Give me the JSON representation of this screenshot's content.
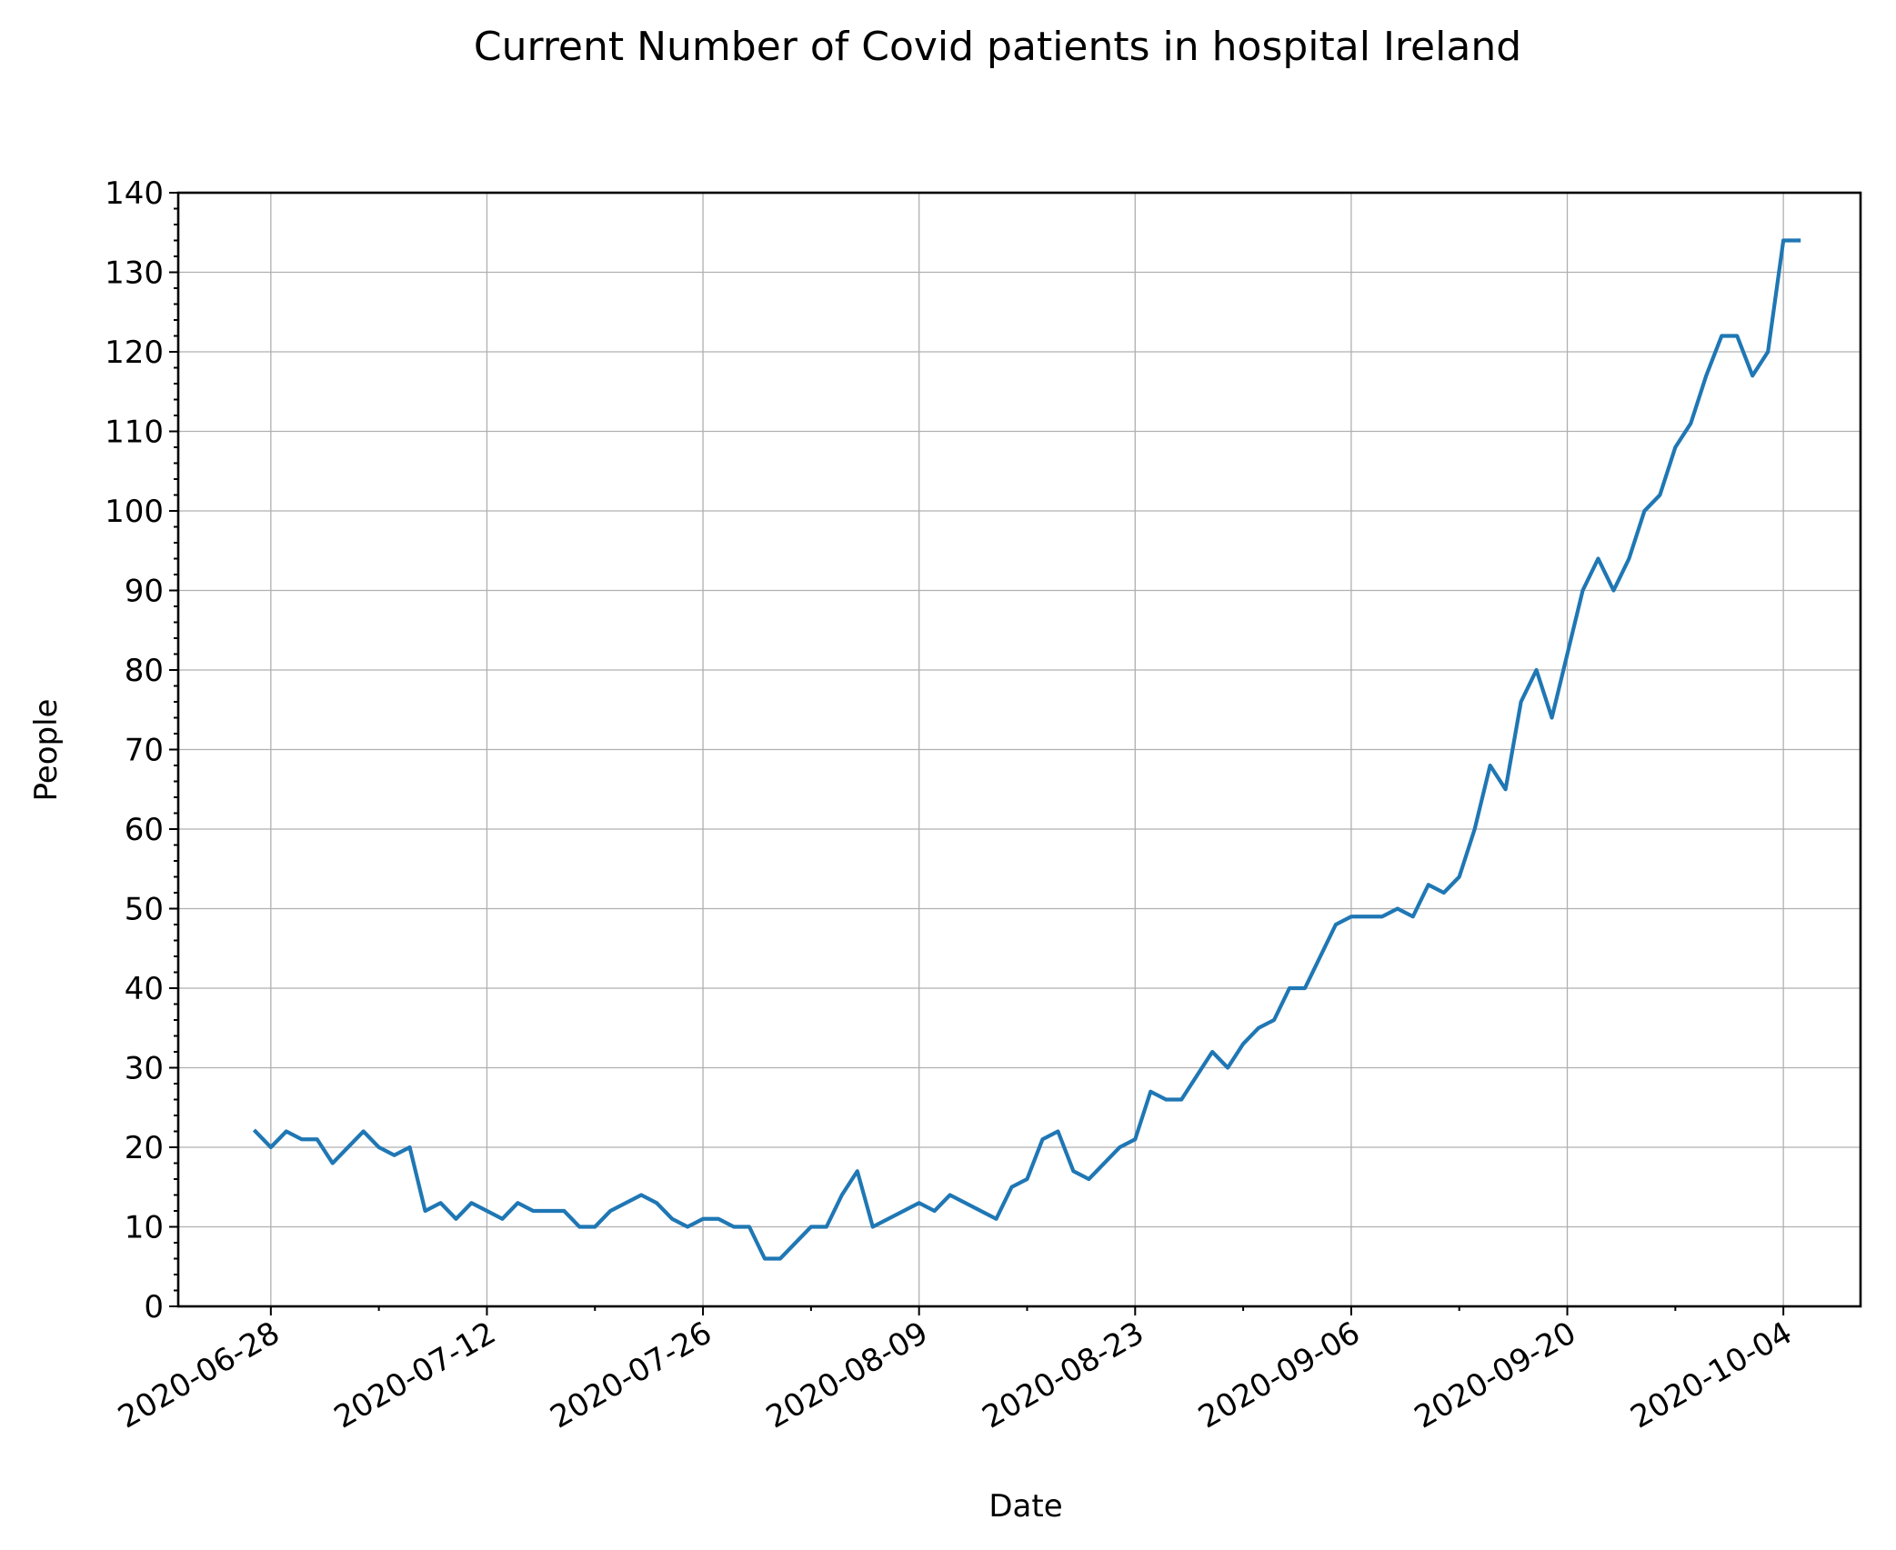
{
  "chart_data": {
    "type": "line",
    "title": "Current Number of Covid patients in hospital Ireland",
    "xlabel": "Date",
    "ylabel": "People",
    "x_ticks": [
      "2020-06-28",
      "2020-07-12",
      "2020-07-26",
      "2020-08-09",
      "2020-08-23",
      "2020-09-06",
      "2020-09-20",
      "2020-10-04"
    ],
    "y_ticks": [
      0,
      10,
      20,
      30,
      40,
      50,
      60,
      70,
      80,
      90,
      100,
      110,
      120,
      130,
      140
    ],
    "xlim": [
      "2020-06-22",
      "2020-10-09"
    ],
    "ylim": [
      0,
      140
    ],
    "grid": true,
    "legend": "none",
    "color": "#1f77b4",
    "x": [
      "2020-06-27",
      "2020-06-28",
      "2020-06-29",
      "2020-06-30",
      "2020-07-01",
      "2020-07-02",
      "2020-07-03",
      "2020-07-04",
      "2020-07-05",
      "2020-07-06",
      "2020-07-07",
      "2020-07-08",
      "2020-07-09",
      "2020-07-10",
      "2020-07-11",
      "2020-07-12",
      "2020-07-13",
      "2020-07-14",
      "2020-07-15",
      "2020-07-16",
      "2020-07-17",
      "2020-07-18",
      "2020-07-19",
      "2020-07-20",
      "2020-07-21",
      "2020-07-22",
      "2020-07-23",
      "2020-07-24",
      "2020-07-25",
      "2020-07-26",
      "2020-07-27",
      "2020-07-28",
      "2020-07-29",
      "2020-07-30",
      "2020-07-31",
      "2020-08-01",
      "2020-08-02",
      "2020-08-03",
      "2020-08-04",
      "2020-08-05",
      "2020-08-06",
      "2020-08-07",
      "2020-08-08",
      "2020-08-09",
      "2020-08-10",
      "2020-08-11",
      "2020-08-12",
      "2020-08-13",
      "2020-08-14",
      "2020-08-15",
      "2020-08-16",
      "2020-08-17",
      "2020-08-18",
      "2020-08-19",
      "2020-08-20",
      "2020-08-21",
      "2020-08-22",
      "2020-08-23",
      "2020-08-24",
      "2020-08-25",
      "2020-08-26",
      "2020-08-27",
      "2020-08-28",
      "2020-08-29",
      "2020-08-30",
      "2020-08-31",
      "2020-09-01",
      "2020-09-02",
      "2020-09-03",
      "2020-09-04",
      "2020-09-05",
      "2020-09-06",
      "2020-09-07",
      "2020-09-08",
      "2020-09-09",
      "2020-09-10",
      "2020-09-11",
      "2020-09-12",
      "2020-09-13",
      "2020-09-14",
      "2020-09-15",
      "2020-09-16",
      "2020-09-17",
      "2020-09-18",
      "2020-09-19",
      "2020-09-20",
      "2020-09-21",
      "2020-09-22",
      "2020-09-23",
      "2020-09-24",
      "2020-09-25",
      "2020-09-26",
      "2020-09-27",
      "2020-09-28",
      "2020-09-29",
      "2020-09-30",
      "2020-10-01",
      "2020-10-02",
      "2020-10-03",
      "2020-10-04",
      "2020-10-05"
    ],
    "series": [
      {
        "values": [
          22,
          20,
          22,
          21,
          21,
          18,
          20,
          22,
          20,
          19,
          20,
          12,
          13,
          11,
          13,
          12,
          11,
          13,
          12,
          12,
          12,
          10,
          10,
          12,
          13,
          14,
          13,
          11,
          10,
          11,
          11,
          10,
          10,
          6,
          6,
          8,
          10,
          10,
          14,
          17,
          10,
          11,
          12,
          13,
          12,
          14,
          13,
          12,
          11,
          15,
          16,
          21,
          22,
          17,
          16,
          18,
          20,
          21,
          27,
          26,
          26,
          29,
          32,
          30,
          33,
          35,
          36,
          40,
          40,
          44,
          48,
          49,
          49,
          49,
          50,
          49,
          53,
          52,
          54,
          60,
          68,
          65,
          76,
          80,
          74,
          82,
          90,
          94,
          90,
          94,
          100,
          102,
          108,
          111,
          117,
          122,
          122,
          117,
          120,
          134,
          134
        ]
      }
    ]
  }
}
